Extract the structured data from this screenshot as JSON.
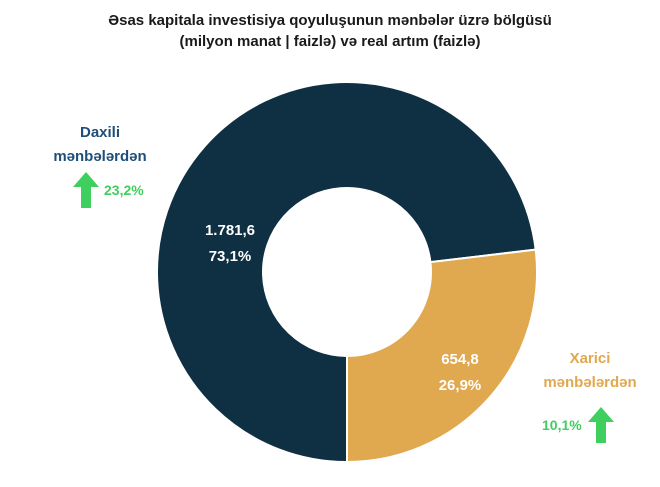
{
  "title_line1": "Əsas kapitala investisiya qoyuluşunun mənbələr üzrə bölgüsü",
  "title_line2": "(milyon manat | faizlə) və real artım (faizlə)",
  "colors": {
    "domestic": "#0f3042",
    "foreign": "#e0a84f",
    "growth": "#3fcf5e",
    "domestic_label": "#1f4e79",
    "foreign_label": "#e0a84f"
  },
  "icons": [
    "up-arrow-icon"
  ],
  "chart_data": {
    "type": "pie",
    "categories": [
      "Daxili mənbələrdən",
      "Xarici mənbələrdən"
    ],
    "values": [
      1781.6,
      654.8
    ],
    "percents": [
      73.1,
      26.9
    ],
    "value_labels": [
      "1.781,6",
      "654,8"
    ],
    "percent_labels": [
      "73,1%",
      "26,9%"
    ],
    "growth_labels": [
      "23,2%",
      "10,1%"
    ],
    "growth_values": [
      23.2,
      10.1
    ]
  },
  "domestic": {
    "label_line1": "Daxili",
    "label_line2": "mənbələrdən",
    "value": "1.781,6",
    "percent": "73,1%",
    "growth": "23,2%"
  },
  "foreign": {
    "label_line1": "Xarici",
    "label_line2": "mənbələrdən",
    "value": "654,8",
    "percent": "26,9%",
    "growth": "10,1%"
  }
}
